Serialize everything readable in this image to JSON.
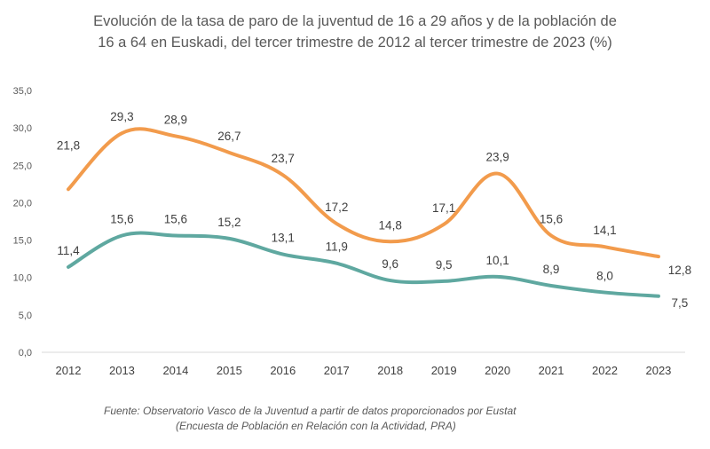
{
  "chart_data": {
    "type": "line",
    "title_line1": "Evolución de la tasa de paro de la juventud de 16 a 29 años y de la población de",
    "title_line2": "16 a 64 en Euskadi, del tercer trimestre de 2012 al tercer trimestre de 2023 (%)",
    "categories": [
      "2012",
      "2013",
      "2014",
      "2015",
      "2016",
      "2017",
      "2018",
      "2019",
      "2020",
      "2021",
      "2022",
      "2023"
    ],
    "series": [
      {
        "values": [
          21.8,
          29.3,
          28.9,
          26.7,
          23.7,
          17.2,
          14.8,
          17.1,
          23.9,
          15.6,
          14.1,
          12.8
        ],
        "labels": [
          "21,8",
          "29,3",
          "28,9",
          "26,7",
          "23,7",
          "17,2",
          "14,8",
          "17,1",
          "23,9",
          "15,6",
          "14,1",
          "12,8"
        ],
        "color": "#F29B4C"
      },
      {
        "values": [
          11.4,
          15.6,
          15.6,
          15.2,
          13.1,
          11.9,
          9.6,
          9.5,
          10.1,
          8.9,
          8.0,
          7.5
        ],
        "labels": [
          "11,4",
          "15,6",
          "15,6",
          "15,2",
          "13,1",
          "11,9",
          "9,6",
          "9,5",
          "10,1",
          "8,9",
          "8,0",
          "7,5"
        ],
        "color": "#5FA8A0"
      }
    ],
    "ylim": [
      0,
      35
    ],
    "yticks": [
      "0,0",
      "5,0",
      "10,0",
      "15,0",
      "20,0",
      "25,0",
      "30,0",
      "35,0"
    ],
    "grid": false,
    "smooth": true,
    "xlabel": "",
    "ylabel": ""
  },
  "source_line1": "Fuente: Observatorio Vasco de la Juventud a partir de datos proporcionados por Eustat",
  "source_line2": "(Encuesta de Población en Relación con la Actividad, PRA)"
}
